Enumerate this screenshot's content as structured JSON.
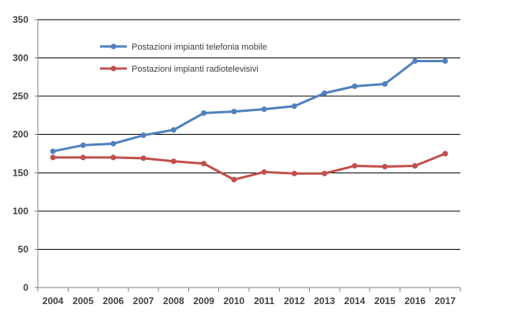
{
  "chart_data": {
    "type": "line",
    "title": "",
    "xlabel": "",
    "ylabel": "",
    "categories": [
      "2004",
      "2005",
      "2006",
      "2007",
      "2008",
      "2009",
      "2010",
      "2011",
      "2012",
      "2013",
      "2014",
      "2015",
      "2016",
      "2017"
    ],
    "ylim": [
      0,
      350
    ],
    "yticks": [
      0,
      50,
      100,
      150,
      200,
      250,
      300,
      350
    ],
    "grid": "horizontal",
    "legend_position": "top-left",
    "series": [
      {
        "name": "Postazioni impianti telefonia mobile",
        "color": "#4f81bd",
        "values": [
          178,
          186,
          188,
          199,
          206,
          228,
          230,
          233,
          237,
          254,
          263,
          266,
          296,
          296
        ]
      },
      {
        "name": "Postazioni impianti radiotelevisivi",
        "color": "#c0504d",
        "values": [
          170,
          170,
          170,
          169,
          165,
          162,
          141,
          151,
          149,
          149,
          159,
          158,
          159,
          175
        ]
      }
    ]
  }
}
